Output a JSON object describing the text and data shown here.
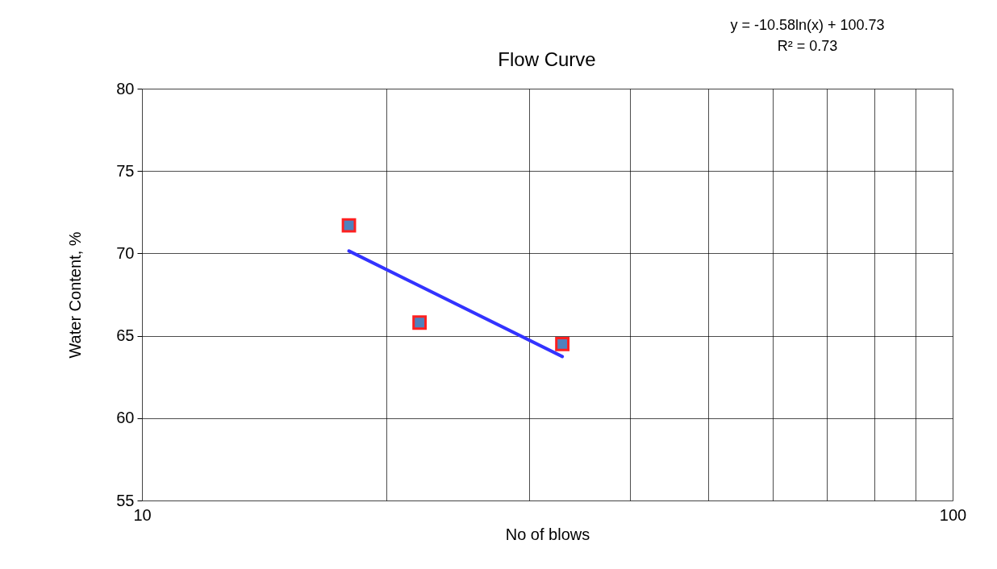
{
  "chart_data": {
    "type": "scatter",
    "title": "Flow Curve",
    "xlabel": "No of blows",
    "ylabel": "Water Content, %",
    "annotations": [
      "y = -10.58ln(x) + 100.73",
      "R² = 0.73"
    ],
    "log": "x",
    "grid": true,
    "xlim": [
      10,
      100
    ],
    "xticks": [
      10,
      {
        "value": 20,
        "label": null
      },
      {
        "value": 30,
        "label": null
      },
      {
        "value": 40,
        "label": null
      },
      {
        "value": 50,
        "label": null
      },
      {
        "value": 60,
        "label": null
      },
      {
        "value": 70,
        "label": null
      },
      {
        "value": 80,
        "label": null
      },
      {
        "value": 90,
        "label": null
      },
      100
    ],
    "ylim": [
      55,
      80
    ],
    "yticks": [
      55,
      60,
      65,
      70,
      75,
      80
    ],
    "series": [
      {
        "marker": "square",
        "color": "#4f81bd",
        "x": [
          18,
          22,
          33
        ],
        "values": [
          71.7,
          65.8,
          64.5
        ]
      },
      {
        "type": "line",
        "color": "#3333ff",
        "x": [
          18,
          33
        ],
        "values": [
          70.15,
          63.74
        ]
      }
    ]
  }
}
